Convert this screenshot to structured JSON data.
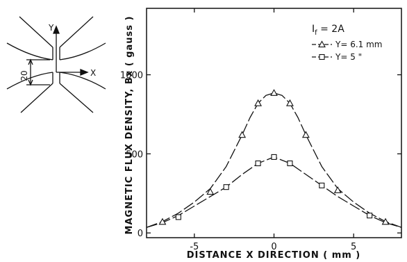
{
  "chart_data": {
    "type": "line",
    "xlabel": "DISTANCE X DIRECTION ( mm )",
    "ylabel": "MAGNETIC FLUX DENSITY, Bx ( gauss )",
    "xlim": [
      -8,
      8
    ],
    "ylim": [
      -30,
      1420
    ],
    "xticks": [
      -5,
      0,
      5
    ],
    "yticks": [
      0,
      500,
      1000
    ],
    "grid": false,
    "legend_title": "I_f = 2A",
    "legend_title_main": "I",
    "legend_title_sub": "f",
    "legend_title_rest": " = 2A",
    "legend_position": "top-right",
    "series": [
      {
        "name": "Y= 6.1 mm",
        "marker": "triangle",
        "x": [
          -7,
          -4,
          -2,
          -1,
          0,
          1,
          2,
          4,
          7
        ],
        "y": [
          70,
          260,
          620,
          820,
          885,
          820,
          620,
          270,
          70
        ]
      },
      {
        "name": "Y= 5 \"",
        "marker": "square",
        "x": [
          -6,
          -3,
          -1,
          0,
          1,
          3,
          6
        ],
        "y": [
          100,
          290,
          440,
          480,
          440,
          300,
          110
        ]
      }
    ],
    "curve_y_6_1": {
      "x": [
        -8,
        -7,
        -6,
        -5,
        -4,
        -3,
        -2,
        -1.5,
        -1,
        -0.5,
        0,
        0.5,
        1,
        1.5,
        2,
        3,
        4,
        5,
        6,
        7,
        8
      ],
      "y": [
        35,
        72,
        125,
        195,
        280,
        420,
        620,
        730,
        820,
        870,
        885,
        870,
        820,
        730,
        620,
        420,
        280,
        195,
        125,
        72,
        35
      ]
    },
    "curve_y_5": {
      "x": [
        -8,
        -7,
        -6,
        -5,
        -4,
        -3,
        -2,
        -1,
        0,
        1,
        2,
        3,
        4,
        5,
        6,
        7,
        8
      ],
      "y": [
        35,
        65,
        110,
        170,
        230,
        290,
        370,
        440,
        480,
        440,
        370,
        300,
        230,
        170,
        110,
        65,
        35
      ]
    }
  },
  "inset": {
    "y_label": "Y",
    "x_label": "X",
    "gap_label": "20"
  }
}
